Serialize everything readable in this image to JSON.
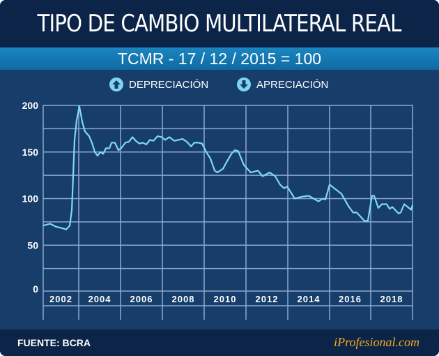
{
  "header": {
    "title": "TIPO DE CAMBIO MULTILATERAL REAL",
    "subtitle": "TCMR - 17 / 12 / 2015 = 100"
  },
  "legend": [
    {
      "label": "DEPRECIACIÓN",
      "icon": "arrow-up-circle-icon"
    },
    {
      "label": "APRECIACIÓN",
      "icon": "arrow-down-circle-icon"
    }
  ],
  "footer": {
    "source": "FUENTE: BCRA",
    "brand": "iProfesional.com"
  },
  "colors": {
    "line": "#7fd8f5",
    "grid": "#8ea9cb",
    "background": "#173d6b",
    "brand": "#f4a81e"
  },
  "chart_data": {
    "type": "line",
    "title": "TIPO DE CAMBIO MULTILATERAL REAL",
    "subtitle": "TCMR - 17 / 12 / 2015 = 100",
    "xlabel": "",
    "ylabel": "",
    "ylim": [
      0,
      200
    ],
    "yticks": [
      "0",
      "50",
      "100",
      "150",
      "200"
    ],
    "xtick_labels": [
      "2002",
      "2004",
      "2006",
      "2008",
      "2010",
      "2012",
      "2014",
      "2016",
      "2018"
    ],
    "xlim": [
      2000.8,
      2018.5
    ],
    "grid": true,
    "series": [
      {
        "name": "TCMR",
        "x": [
          2000.8,
          2001.13,
          2001.4,
          2001.73,
          2001.9,
          2002.07,
          2002.17,
          2002.3,
          2002.4,
          2002.53,
          2002.67,
          2002.8,
          2003.0,
          2003.13,
          2003.27,
          2003.4,
          2003.53,
          2003.67,
          2003.8,
          2003.97,
          2004.07,
          2004.23,
          2004.4,
          2004.53,
          2004.73,
          2004.9,
          2005.07,
          2005.23,
          2005.4,
          2005.57,
          2005.73,
          2005.9,
          2006.07,
          2006.27,
          2006.47,
          2006.63,
          2006.83,
          2007.07,
          2007.27,
          2007.47,
          2007.67,
          2007.87,
          2008.03,
          2008.23,
          2008.4,
          2008.6,
          2008.8,
          2009.0,
          2009.13,
          2009.4,
          2009.57,
          2009.8,
          2009.97,
          2010.13,
          2010.4,
          2010.73,
          2011.07,
          2011.3,
          2011.63,
          2011.9,
          2012.13,
          2012.33,
          2012.47,
          2012.83,
          2013.17,
          2013.5,
          2013.97,
          2014.17,
          2014.3,
          2014.5,
          2015.07,
          2015.4,
          2015.63,
          2015.8,
          2016.17,
          2016.33,
          2016.53,
          2016.63,
          2016.83,
          2017.0,
          2017.23,
          2017.37,
          2017.5,
          2017.8,
          2017.9,
          2018.07,
          2018.4,
          2018.47
        ],
        "values": [
          71,
          73,
          70,
          68,
          67,
          71,
          88,
          163,
          184,
          199,
          182,
          172,
          167,
          160,
          150,
          146,
          150,
          148,
          154,
          154,
          160,
          160,
          152,
          154,
          160,
          161,
          166,
          162,
          159,
          160,
          158,
          163,
          162,
          167,
          166,
          163,
          166,
          162,
          163,
          164,
          161,
          156,
          160,
          160,
          159,
          150,
          143,
          130,
          128,
          132,
          139,
          148,
          152,
          151,
          136,
          128,
          130,
          124,
          128,
          124,
          115,
          111,
          113,
          100,
          102,
          103,
          97,
          100,
          99,
          115,
          105,
          92,
          85,
          85,
          76,
          76,
          103,
          103,
          90,
          94,
          94,
          89,
          91,
          84,
          85,
          94,
          88,
          93
        ]
      }
    ]
  }
}
